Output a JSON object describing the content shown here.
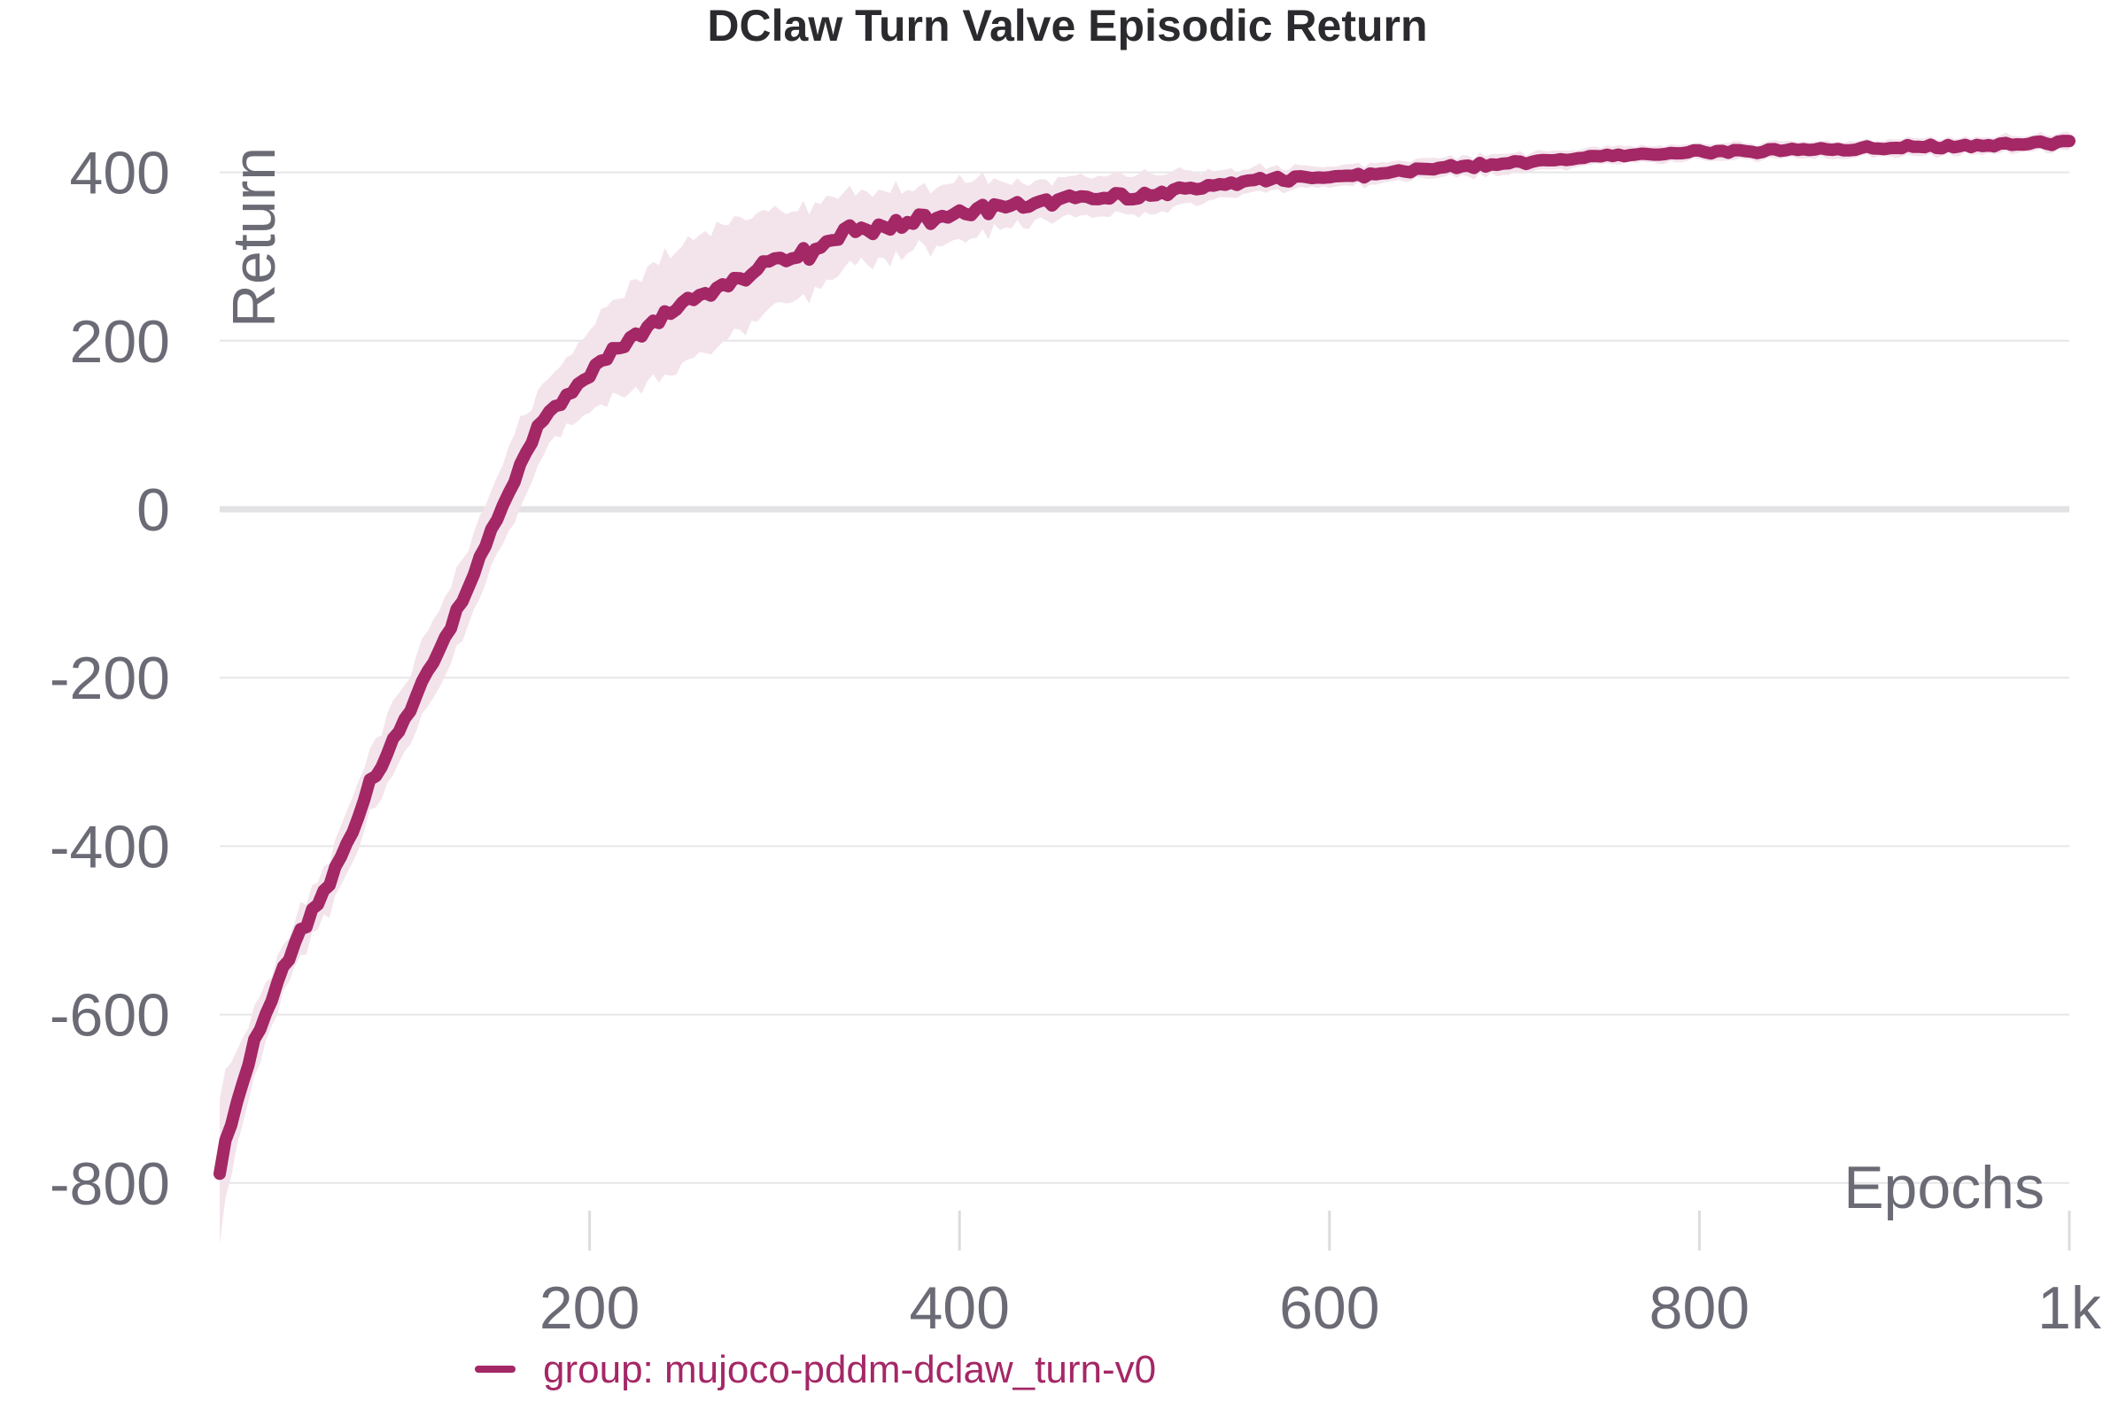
{
  "chart_data": {
    "type": "line",
    "title": "DClaw Turn Valve Episodic Return",
    "xlabel": "Epochs",
    "ylabel": "Return",
    "xlim": [
      0,
      1000
    ],
    "ylim": [
      -850,
      470
    ],
    "x_ticks": [
      {
        "value": 200,
        "label": "200"
      },
      {
        "value": 400,
        "label": "400"
      },
      {
        "value": 600,
        "label": "600"
      },
      {
        "value": 800,
        "label": "800"
      },
      {
        "value": 1000,
        "label": "1k"
      }
    ],
    "y_ticks": [
      {
        "value": -800,
        "label": "-800"
      },
      {
        "value": -600,
        "label": "-600"
      },
      {
        "value": -400,
        "label": "-400"
      },
      {
        "value": -200,
        "label": "-200"
      },
      {
        "value": 0,
        "label": "0"
      },
      {
        "value": 200,
        "label": "200"
      },
      {
        "value": 400,
        "label": "400"
      }
    ],
    "grid": true,
    "legend_position": "bottom",
    "series": [
      {
        "name": "group: mujoco-pddm-dclaw_turn-v0",
        "color": "#a42766",
        "band_color": "#f3e4ec",
        "x": [
          0,
          10,
          20,
          30,
          40,
          50,
          60,
          70,
          80,
          90,
          100,
          110,
          120,
          130,
          140,
          150,
          160,
          170,
          180,
          190,
          200,
          210,
          220,
          230,
          240,
          250,
          260,
          270,
          280,
          290,
          300,
          320,
          340,
          360,
          380,
          400,
          420,
          440,
          460,
          480,
          500,
          520,
          540,
          560,
          580,
          600,
          620,
          640,
          660,
          680,
          700,
          720,
          740,
          760,
          780,
          800,
          820,
          840,
          860,
          880,
          900,
          920,
          940,
          960,
          980,
          1000
        ],
        "y": [
          -780,
          -700,
          -625,
          -570,
          -520,
          -480,
          -440,
          -390,
          -330,
          -290,
          -250,
          -205,
          -165,
          -115,
          -65,
          -10,
          40,
          90,
          120,
          140,
          165,
          185,
          200,
          215,
          230,
          245,
          255,
          262,
          272,
          285,
          298,
          305,
          330,
          335,
          345,
          352,
          358,
          362,
          368,
          370,
          372,
          378,
          385,
          390,
          393,
          395,
          397,
          402,
          405,
          408,
          412,
          414,
          418,
          420,
          422,
          424,
          425,
          426,
          427,
          428,
          429,
          430,
          431,
          432,
          434,
          435
        ],
        "upper": [
          -690,
          -640,
          -590,
          -540,
          -495,
          -450,
          -410,
          -350,
          -290,
          -245,
          -205,
          -160,
          -115,
          -65,
          -15,
          40,
          95,
          130,
          160,
          185,
          215,
          245,
          265,
          285,
          300,
          315,
          328,
          335,
          342,
          350,
          355,
          360,
          375,
          380,
          385,
          390,
          390,
          388,
          392,
          395,
          397,
          400,
          402,
          405,
          407,
          408,
          410,
          414,
          417,
          420,
          423,
          425,
          428,
          430,
          432,
          434,
          435,
          436,
          437,
          438,
          439,
          440,
          441,
          442,
          444,
          445
        ],
        "lower": [
          -860,
          -750,
          -665,
          -605,
          -550,
          -510,
          -475,
          -425,
          -365,
          -330,
          -290,
          -245,
          -210,
          -160,
          -110,
          -55,
          -10,
          40,
          85,
          100,
          120,
          130,
          140,
          150,
          160,
          170,
          185,
          195,
          210,
          225,
          245,
          255,
          290,
          295,
          310,
          320,
          330,
          338,
          345,
          348,
          350,
          358,
          368,
          375,
          380,
          383,
          385,
          390,
          393,
          396,
          400,
          403,
          408,
          410,
          412,
          414,
          415,
          416,
          417,
          418,
          419,
          420,
          421,
          422,
          424,
          425
        ]
      }
    ]
  }
}
